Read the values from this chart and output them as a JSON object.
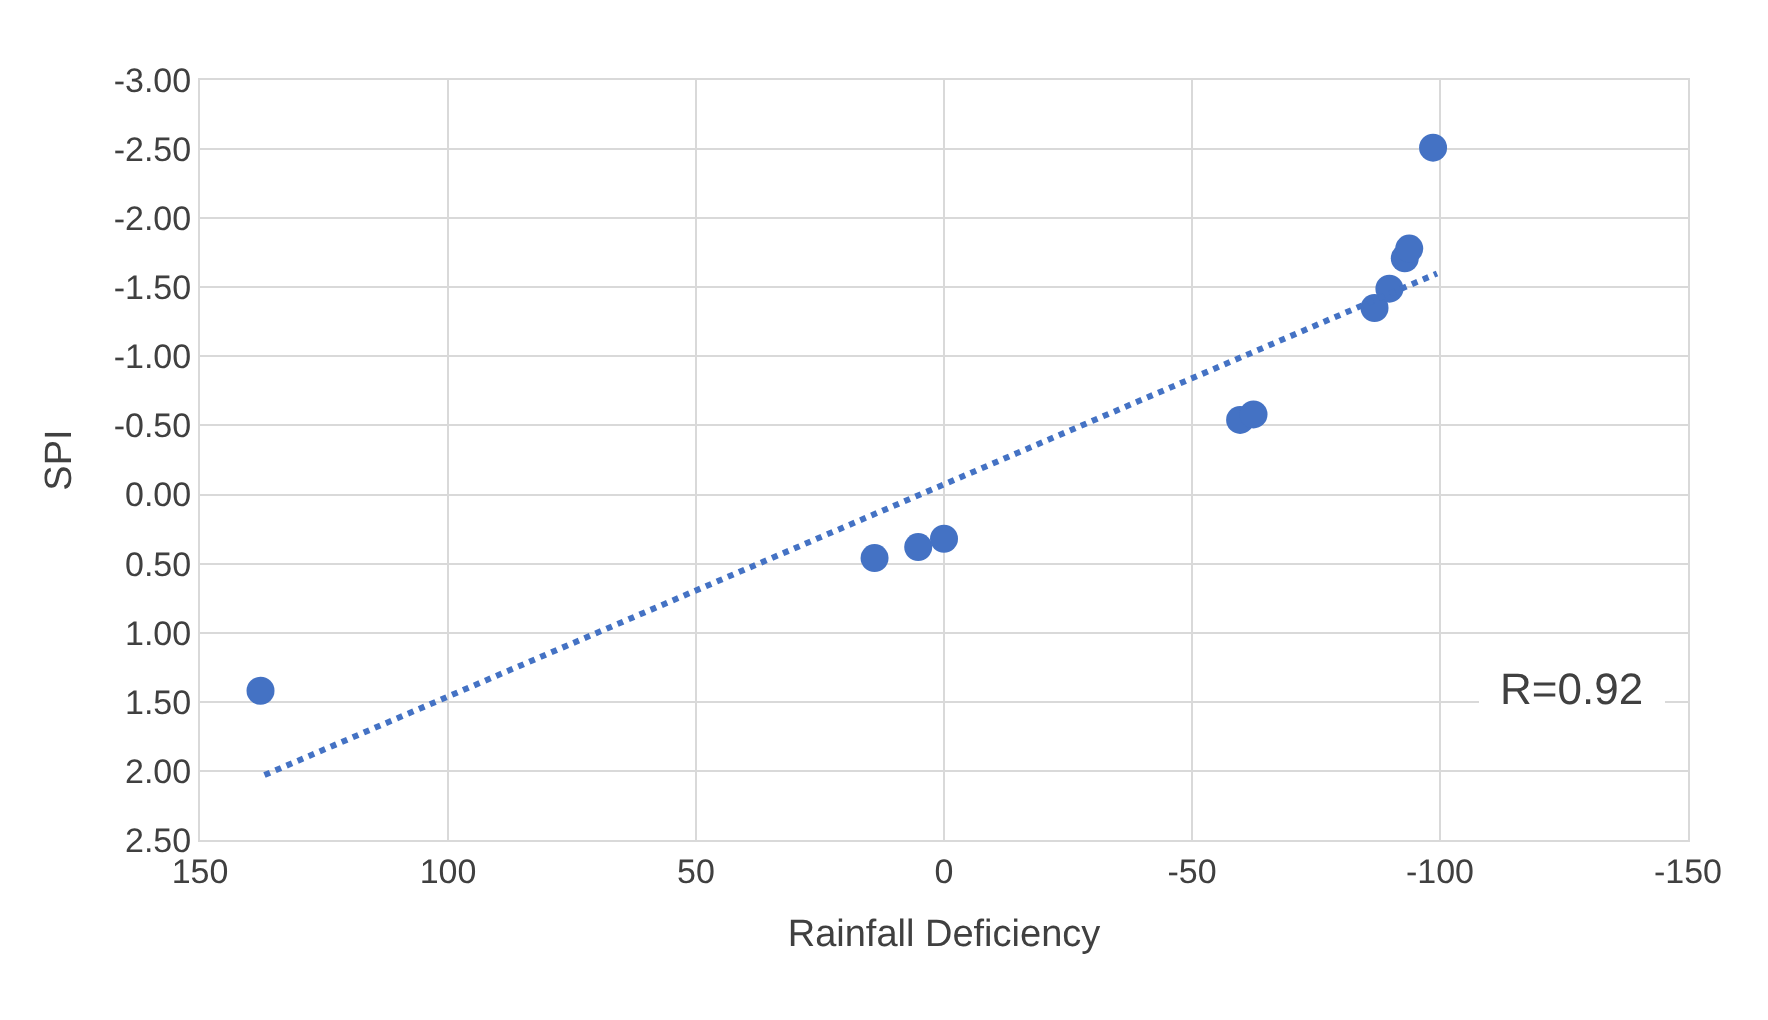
{
  "chart_data": {
    "type": "scatter",
    "xlabel": "Rainfall Deficiency",
    "ylabel": "SPI",
    "xlim": [
      150,
      -150
    ],
    "xticks": [
      150,
      100,
      50,
      0,
      -50,
      -100,
      -150
    ],
    "ylim": [
      2.5,
      -3
    ],
    "yticks": [
      {
        "value": 2.5,
        "label": "2.50"
      },
      {
        "value": 2,
        "label": "2.00"
      },
      {
        "value": 1.5,
        "label": "1.50"
      },
      {
        "value": 1,
        "label": "1.00"
      },
      {
        "value": 0.5,
        "label": "0.50"
      },
      {
        "value": 0,
        "label": "0.00"
      },
      {
        "value": -0.5,
        "label": "-0.50"
      },
      {
        "value": -1,
        "label": "-1.00"
      },
      {
        "value": -1.5,
        "label": "-1.50"
      },
      {
        "value": -2,
        "label": "-2.00"
      },
      {
        "value": -2.5,
        "label": "-2.50"
      },
      {
        "value": -3,
        "label": "-3.00"
      }
    ],
    "grid": true,
    "marker": "circle",
    "annotations": [
      "R=0.92"
    ],
    "series": [
      {
        "color": "#4472c4",
        "x": [
          137.8,
          14,
          5.2,
          0,
          -59.7,
          -62.4,
          -86.8,
          -89.8,
          -92.9,
          -93.8,
          -98.6
        ],
        "values": [
          1.42,
          0.46,
          0.38,
          0.32,
          -0.54,
          -0.58,
          -1.35,
          -1.49,
          -1.71,
          -1.78,
          -2.51
        ]
      },
      {
        "type": "line",
        "color": "#4472c4",
        "line_style": "dotted",
        "marker": "none",
        "x": [
          137,
          -99.4
        ],
        "values": [
          2.03,
          -1.6
        ]
      }
    ]
  }
}
